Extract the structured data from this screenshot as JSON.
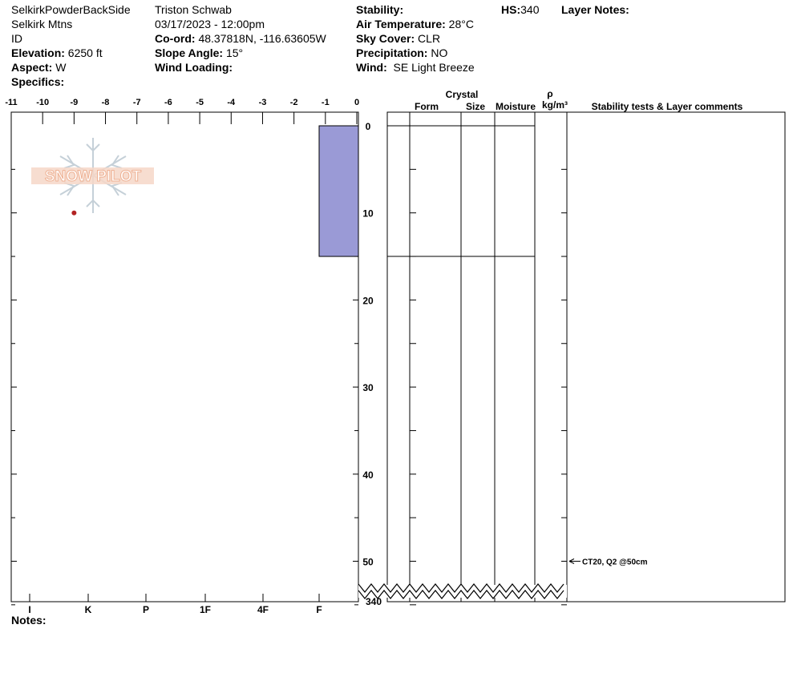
{
  "header": {
    "location_name": "SelkirkPowderBackSide",
    "range": "Selkirk Mtns",
    "state": "ID",
    "elevation_label": "Elevation:",
    "elevation_value": "6250 ft",
    "aspect_label": "Aspect:",
    "aspect_value": "W",
    "specifics_label": "Specifics:",
    "observer": "Triston Schwab",
    "datetime": "03/17/2023 - 12:00pm",
    "coord_label": "Co-ord:",
    "coord_value": "48.37818N, -116.63605W",
    "slope_label": "Slope Angle:",
    "slope_value": "15°",
    "wind_loading_label": "Wind Loading:",
    "stability_label": "Stability:",
    "air_temp_label": "Air Temperature:",
    "air_temp_value": "28°C",
    "sky_label": "Sky Cover:",
    "sky_value": "CLR",
    "precip_label": "Precipitation:",
    "precip_value": "NO",
    "wind_label": "Wind:",
    "wind_value": "SE Light Breeze",
    "hs_label": "HS:",
    "hs_value": "340",
    "layer_notes_label": "Layer Notes:"
  },
  "notes_label": "Notes:",
  "logo_text": "SNOW PILOT",
  "table_headers": {
    "crystal": "Crystal",
    "form": "Form",
    "size": "Size",
    "moisture": "Moisture",
    "rho": "ρ",
    "density_unit": "kg/m³",
    "stability": "Stability tests & Layer comments"
  },
  "chart_data": {
    "type": "snow-profile",
    "temperature_axis": {
      "range": [
        -11,
        0
      ],
      "ticks": [
        "-11",
        "-10",
        "-9",
        "-8",
        "-7",
        "-6",
        "-5",
        "-4",
        "-3",
        "-2",
        "-1",
        "0"
      ]
    },
    "hardness_axis": {
      "ticks": [
        "I",
        "K",
        "P",
        "1F",
        "4F",
        "F"
      ]
    },
    "depth_axis": {
      "range": [
        0,
        55
      ],
      "ticks": [
        "0",
        "10",
        "20",
        "30",
        "40",
        "50"
      ],
      "bottom_label": "340"
    },
    "hs": 340,
    "layers": [
      {
        "top": 0,
        "bottom": 15,
        "hardness": "F"
      }
    ],
    "temperature_points": [
      {
        "depth": 10,
        "temp": -9
      }
    ],
    "stability_tests": [
      {
        "depth": 50,
        "label": "CT20, Q2 @50cm"
      }
    ],
    "colors": {
      "layer_fill": "#9a9ad6",
      "temp_point": "#b22222",
      "logo": "#f2bba0"
    }
  }
}
